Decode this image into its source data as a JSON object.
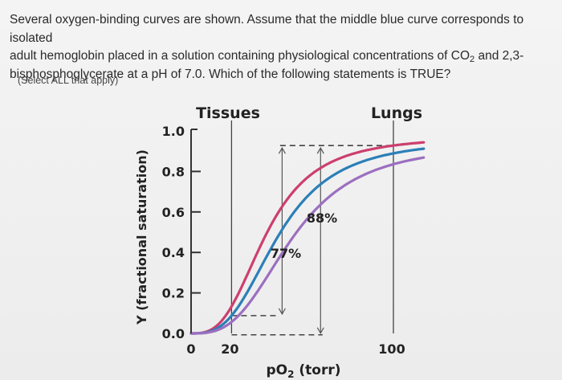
{
  "question": {
    "line1": "Several oxygen-binding curves are shown. Assume that the middle blue curve corresponds to isolated",
    "line2_pre": "adult hemoglobin placed in a solution containing physiological concentrations of CO",
    "line2_sub": "2",
    "line2_post": " and 2,3-",
    "line3": "bisphosphoglycerate at a pH of 7.0. Which of the following statements is TRUE?"
  },
  "instruction": "(Select ALL that apply)",
  "colors": {
    "red_curve": "#cc3f6e",
    "blue_curve": "#2c7fb8",
    "purple_curve": "#9b6fc0",
    "axis": "#333333"
  },
  "chart_data": {
    "type": "line",
    "ylabel": "Y (fractional saturation)",
    "xlabel_pre": "pO",
    "xlabel_sub": "2",
    "xlabel_post": " (torr)",
    "y_ticks": [
      "1.0",
      "0.8",
      "0.6",
      "0.4",
      "0.2",
      "0.0"
    ],
    "y_tick_values": [
      1.0,
      0.8,
      0.6,
      0.4,
      0.2,
      0.0
    ],
    "x_ticks": [
      "0",
      "20",
      "100"
    ],
    "x_tick_values": [
      0,
      20,
      100
    ],
    "xlim": [
      0,
      115
    ],
    "ylim": [
      0,
      1.0
    ],
    "region_labels": {
      "tissues": "Tissues",
      "lungs": "Lungs"
    },
    "annotations": {
      "blue_delta": "77%",
      "purple_delta": "88%"
    },
    "series": [
      {
        "key": "red",
        "p50": 37,
        "n": 3.0,
        "max": 0.975,
        "values": [
          [
            0,
            0
          ],
          [
            10,
            0.02
          ],
          [
            20,
            0.13
          ],
          [
            30,
            0.34
          ],
          [
            40,
            0.54
          ],
          [
            50,
            0.7
          ],
          [
            60,
            0.8
          ],
          [
            80,
            0.9
          ],
          [
            100,
            0.95
          ],
          [
            115,
            0.97
          ]
        ]
      },
      {
        "key": "blue",
        "p50": 43,
        "n": 3.0,
        "max": 0.96,
        "values": [
          [
            0,
            0
          ],
          [
            10,
            0.01
          ],
          [
            20,
            0.09
          ],
          [
            30,
            0.25
          ],
          [
            40,
            0.43
          ],
          [
            50,
            0.58
          ],
          [
            60,
            0.7
          ],
          [
            80,
            0.84
          ],
          [
            100,
            0.91
          ],
          [
            115,
            0.94
          ]
        ]
      },
      {
        "key": "purple",
        "p50": 50,
        "n": 3.0,
        "max": 0.94,
        "values": [
          [
            0,
            0
          ],
          [
            10,
            0.01
          ],
          [
            20,
            0.06
          ],
          [
            30,
            0.17
          ],
          [
            40,
            0.32
          ],
          [
            50,
            0.47
          ],
          [
            60,
            0.59
          ],
          [
            80,
            0.75
          ],
          [
            100,
            0.84
          ],
          [
            115,
            0.88
          ]
        ]
      }
    ]
  }
}
